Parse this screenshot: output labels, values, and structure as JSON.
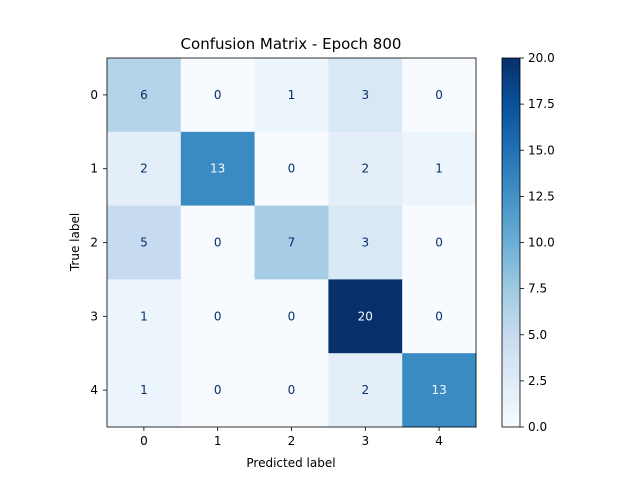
{
  "chart_data": {
    "type": "heatmap",
    "title": "Confusion Matrix - Epoch 800",
    "xlabel": "Predicted label",
    "ylabel": "True label",
    "x_categories": [
      "0",
      "1",
      "2",
      "3",
      "4"
    ],
    "y_categories": [
      "0",
      "1",
      "2",
      "3",
      "4"
    ],
    "values": [
      [
        6,
        0,
        1,
        3,
        0
      ],
      [
        2,
        13,
        0,
        2,
        1
      ],
      [
        5,
        0,
        7,
        3,
        0
      ],
      [
        1,
        0,
        0,
        20,
        0
      ],
      [
        1,
        0,
        0,
        2,
        13
      ]
    ],
    "colormap": "Blues",
    "colorbar": {
      "range": [
        0.0,
        20.0
      ],
      "ticks": [
        "0.0",
        "2.5",
        "5.0",
        "7.5",
        "10.0",
        "12.5",
        "15.0",
        "17.5",
        "20.0"
      ]
    },
    "grid": false,
    "legend": "colorbar-right"
  }
}
